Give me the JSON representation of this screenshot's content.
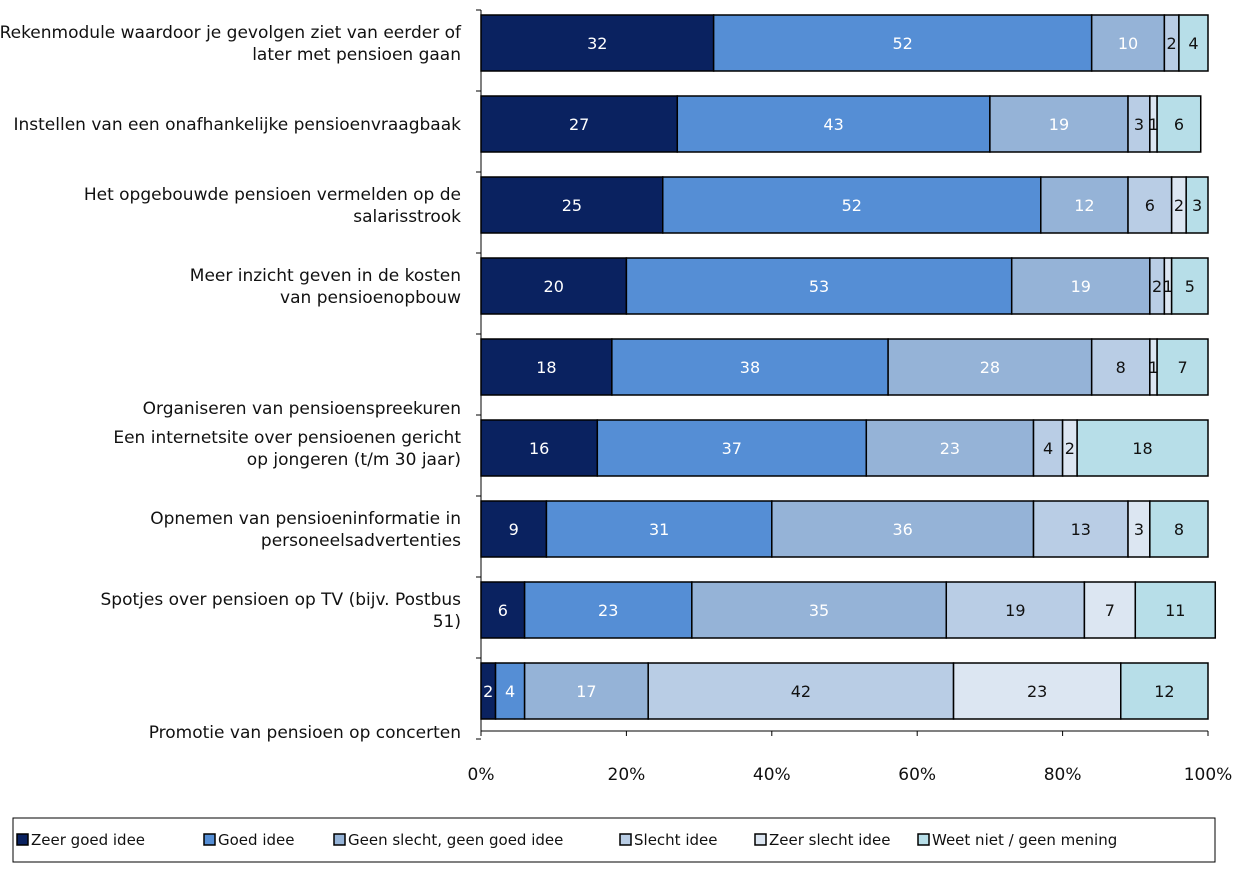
{
  "chart_data": {
    "type": "bar",
    "orientation": "horizontal",
    "stacked": "percent",
    "categories": [
      "Rekenmodule waardoor je gevolgen ziet van eerder of later met pensioen gaan",
      "Instellen van een onafhankelijke pensioenvraagbaak",
      "Het opgebouwde pensioen vermelden op de salarisstrook",
      "Meer inzicht geven in de kosten van pensioenopbouw",
      "Organiseren van pensioenspreekuren",
      "Een internetsite over pensioenen gericht op jongeren (t/m 30 jaar)",
      "Opnemen van pensioeninformatie in personeelsadvertenties",
      "Spotjes over pensioen op TV (bijv. Postbus 51)",
      "Promotie van pensioen op concerten"
    ],
    "series": [
      {
        "name": "Zeer goed idee",
        "color": "#0a2260",
        "label_color": "#ffffff",
        "values": [
          32,
          27,
          25,
          20,
          18,
          16,
          9,
          6,
          2
        ]
      },
      {
        "name": "Goed idee",
        "color": "#558ed5",
        "label_color": "#ffffff",
        "values": [
          52,
          43,
          52,
          53,
          38,
          37,
          31,
          23,
          4
        ]
      },
      {
        "name": "Geen slecht, geen goed idee",
        "color": "#95b3d7",
        "label_color": "#ffffff",
        "values": [
          10,
          19,
          12,
          19,
          28,
          23,
          36,
          35,
          17
        ]
      },
      {
        "name": "Slecht idee",
        "color": "#b9cde5",
        "label_color": "#111111",
        "values": [
          2,
          3,
          6,
          2,
          8,
          4,
          13,
          19,
          42
        ]
      },
      {
        "name": "Zeer slecht idee",
        "color": "#dce6f2",
        "label_color": "#111111",
        "values": [
          0,
          1,
          2,
          1,
          1,
          2,
          3,
          7,
          23
        ]
      },
      {
        "name": "Weet niet / geen mening",
        "color": "#b7dee8",
        "label_color": "#111111",
        "values": [
          4,
          6,
          3,
          5,
          7,
          18,
          8,
          11,
          12
        ]
      }
    ],
    "xlim": [
      0,
      100
    ],
    "x_ticks": [
      "0%",
      "20%",
      "40%",
      "60%",
      "80%",
      "100%"
    ],
    "grid": false,
    "legend_position": "bottom"
  }
}
